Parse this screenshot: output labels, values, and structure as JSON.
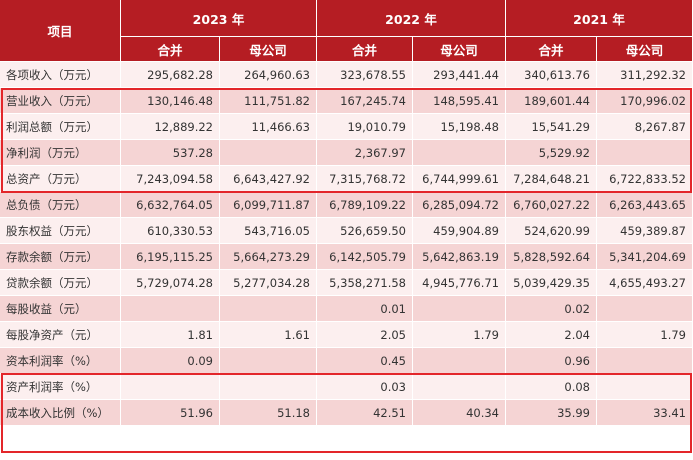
{
  "header": {
    "label": "项目",
    "years": [
      "2023 年",
      "2022 年",
      "2021 年"
    ],
    "subcolumns": [
      "合并",
      "母公司",
      "合并",
      "母公司",
      "合并",
      "母公司"
    ]
  },
  "table": {
    "rows": [
      [
        "各项收入（万元）",
        "295,682.28",
        "264,960.63",
        "323,678.55",
        "293,441.44",
        "340,613.76",
        "311,292.32"
      ],
      [
        "营业收入（万元）",
        "130,146.48",
        "111,751.82",
        "167,245.74",
        "148,595.41",
        "189,601.44",
        "170,996.02"
      ],
      [
        "利润总额（万元）",
        "12,889.22",
        "11,466.63",
        "19,010.79",
        "15,198.48",
        "15,541.29",
        "8,267.87"
      ],
      [
        "净利润（万元）",
        "537.28",
        null,
        "2,367.97",
        null,
        "5,529.92",
        null
      ],
      [
        "总资产（万元）",
        "7,243,094.58",
        "6,643,427.92",
        "7,315,768.72",
        "6,744,999.61",
        "7,284,648.21",
        "6,722,833.52"
      ],
      [
        "总负债（万元）",
        "6,632,764.05",
        "6,099,711.87",
        "6,789,109.22",
        "6,285,094.72",
        "6,760,027.22",
        "6,263,443.65"
      ],
      [
        "股东权益（万元）",
        "610,330.53",
        "543,716.05",
        "526,659.50",
        "459,904.89",
        "524,620.99",
        "459,389.87"
      ],
      [
        "存款余额（万元）",
        "6,195,115.25",
        "5,664,273.29",
        "6,142,505.79",
        "5,642,863.19",
        "5,828,592.64",
        "5,341,204.69"
      ],
      [
        "贷款余额（万元）",
        "5,729,074.28",
        "5,277,034.28",
        "5,358,271.58",
        "4,945,776.71",
        "5,039,429.35",
        "4,655,493.27"
      ],
      [
        "每股收益（元）",
        null,
        null,
        "0.01",
        null,
        "0.02",
        null
      ],
      [
        "每股净资产（元）",
        "1.81",
        "1.61",
        "2.05",
        "1.79",
        "2.04",
        "1.79"
      ],
      [
        "资本利润率（%）",
        "0.09",
        null,
        "0.45",
        null,
        "0.96",
        null
      ],
      [
        "资产利润率（%）",
        null,
        null,
        "0.03",
        null,
        "0.08",
        null
      ],
      [
        "成本收入比例（%）",
        "51.96",
        "51.18",
        "42.51",
        "40.34",
        "35.99",
        "33.41"
      ]
    ]
  }
}
